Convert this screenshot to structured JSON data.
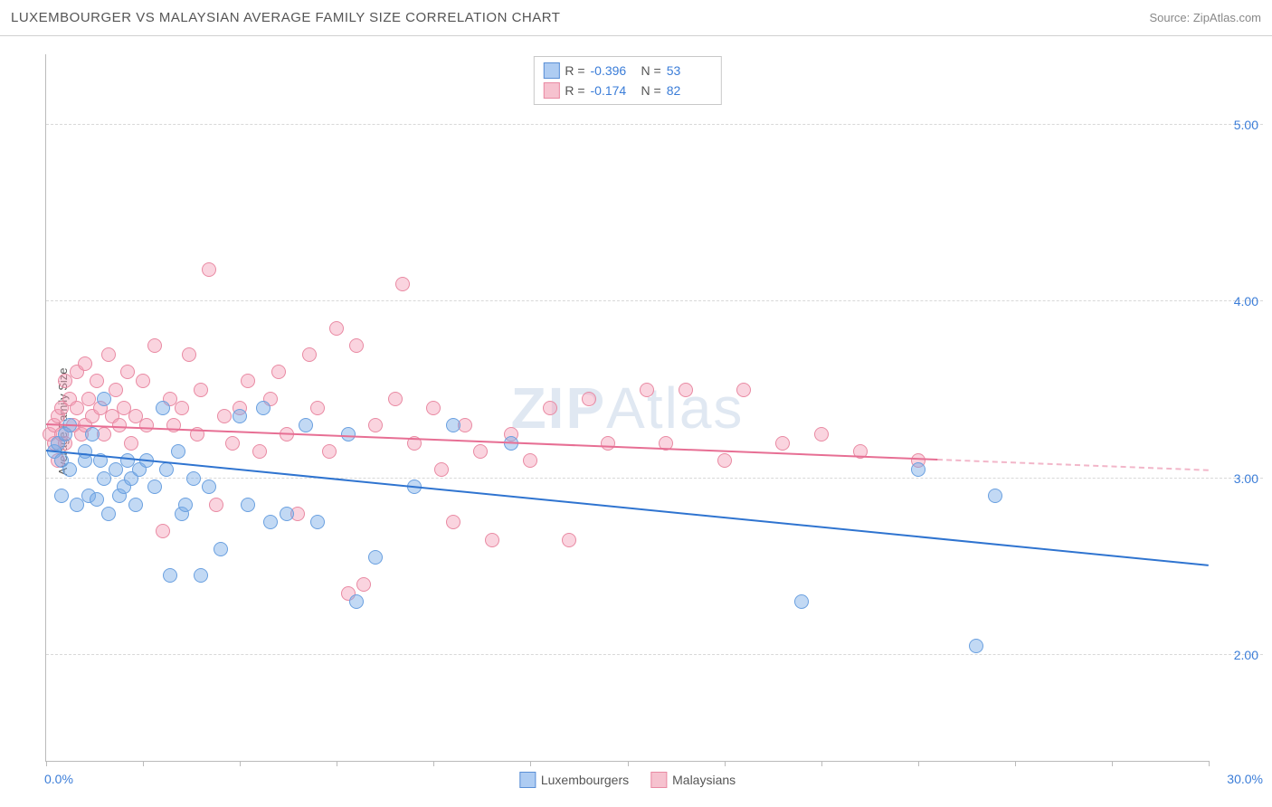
{
  "header": {
    "title": "LUXEMBOURGER VS MALAYSIAN AVERAGE FAMILY SIZE CORRELATION CHART",
    "source": "Source: ZipAtlas.com"
  },
  "watermark": {
    "part1": "ZIP",
    "part2": "Atlas"
  },
  "chart": {
    "type": "scatter",
    "ylabel": "Average Family Size",
    "xlim": [
      0,
      30
    ],
    "ylim": [
      1.4,
      5.4
    ],
    "yticks": [
      2.0,
      3.0,
      4.0,
      5.0
    ],
    "ytick_labels": [
      "2.00",
      "3.00",
      "4.00",
      "5.00"
    ],
    "xticks": [
      0,
      2.5,
      5,
      7.5,
      10,
      12.5,
      15,
      17.5,
      20,
      22.5,
      25,
      27.5,
      30
    ],
    "xlabel_min": "0.0%",
    "xlabel_max": "30.0%",
    "background_color": "#ffffff",
    "grid_color": "#d8d8d8",
    "axis_color": "#bbbbbb",
    "tick_label_color": "#3b7dd8",
    "marker_radius": 8,
    "marker_opacity": 0.55,
    "stats_box": {
      "rows": [
        {
          "swatch_fill": "#aeccf2",
          "swatch_border": "#5a8fd6",
          "r_label": "R =",
          "r_value": "-0.396",
          "n_label": "N =",
          "n_value": "53"
        },
        {
          "swatch_fill": "#f6c2cf",
          "swatch_border": "#e98aa3",
          "r_label": "R =",
          "r_value": "-0.174",
          "n_label": "N =",
          "n_value": "82"
        }
      ]
    },
    "legend": {
      "items": [
        {
          "swatch_fill": "#aeccf2",
          "swatch_border": "#5a8fd6",
          "label": "Luxembourgers"
        },
        {
          "swatch_fill": "#f6c2cf",
          "swatch_border": "#e98aa3",
          "label": "Malaysians"
        }
      ]
    },
    "series": [
      {
        "name": "Luxembourgers",
        "color_fill": "rgba(120,170,230,0.45)",
        "color_border": "#6aa0e0",
        "trend_color": "#2f74d0",
        "trend": {
          "x1": 0,
          "y1": 3.15,
          "x2": 30,
          "y2": 2.5
        },
        "points": [
          [
            0.2,
            3.15
          ],
          [
            0.3,
            3.2
          ],
          [
            0.4,
            3.1
          ],
          [
            0.4,
            2.9
          ],
          [
            0.5,
            3.25
          ],
          [
            0.6,
            3.05
          ],
          [
            0.6,
            3.3
          ],
          [
            0.8,
            2.85
          ],
          [
            1.0,
            3.1
          ],
          [
            1.0,
            3.15
          ],
          [
            1.1,
            2.9
          ],
          [
            1.2,
            3.25
          ],
          [
            1.3,
            2.88
          ],
          [
            1.4,
            3.1
          ],
          [
            1.5,
            3.0
          ],
          [
            1.5,
            3.45
          ],
          [
            1.6,
            2.8
          ],
          [
            1.8,
            3.05
          ],
          [
            1.9,
            2.9
          ],
          [
            2.0,
            2.95
          ],
          [
            2.1,
            3.1
          ],
          [
            2.2,
            3.0
          ],
          [
            2.3,
            2.85
          ],
          [
            2.4,
            3.05
          ],
          [
            2.6,
            3.1
          ],
          [
            2.8,
            2.95
          ],
          [
            3.0,
            3.4
          ],
          [
            3.1,
            3.05
          ],
          [
            3.2,
            2.45
          ],
          [
            3.4,
            3.15
          ],
          [
            3.5,
            2.8
          ],
          [
            3.6,
            2.85
          ],
          [
            3.8,
            3.0
          ],
          [
            4.0,
            2.45
          ],
          [
            4.2,
            2.95
          ],
          [
            4.5,
            2.6
          ],
          [
            5.0,
            3.35
          ],
          [
            5.2,
            2.85
          ],
          [
            5.6,
            3.4
          ],
          [
            5.8,
            2.75
          ],
          [
            6.2,
            2.8
          ],
          [
            6.7,
            3.3
          ],
          [
            7.0,
            2.75
          ],
          [
            7.8,
            3.25
          ],
          [
            8.0,
            2.3
          ],
          [
            8.5,
            2.55
          ],
          [
            9.5,
            2.95
          ],
          [
            10.5,
            3.3
          ],
          [
            12.0,
            3.2
          ],
          [
            19.5,
            2.3
          ],
          [
            22.5,
            3.05
          ],
          [
            24.5,
            2.9
          ],
          [
            24.0,
            2.05
          ]
        ]
      },
      {
        "name": "Malaysians",
        "color_fill": "rgba(245,160,185,0.45)",
        "color_border": "#e98aa3",
        "trend_color": "#e76f94",
        "trend": {
          "x1": 0,
          "y1": 3.3,
          "x2": 23,
          "y2": 3.1
        },
        "trend_dash": {
          "x1": 23,
          "y1": 3.1,
          "x2": 30,
          "y2": 3.04
        },
        "points": [
          [
            0.1,
            3.25
          ],
          [
            0.2,
            3.3
          ],
          [
            0.2,
            3.2
          ],
          [
            0.3,
            3.35
          ],
          [
            0.3,
            3.1
          ],
          [
            0.4,
            3.4
          ],
          [
            0.4,
            3.25
          ],
          [
            0.5,
            3.55
          ],
          [
            0.5,
            3.2
          ],
          [
            0.6,
            3.45
          ],
          [
            0.7,
            3.3
          ],
          [
            0.8,
            3.6
          ],
          [
            0.8,
            3.4
          ],
          [
            0.9,
            3.25
          ],
          [
            1.0,
            3.65
          ],
          [
            1.0,
            3.3
          ],
          [
            1.1,
            3.45
          ],
          [
            1.2,
            3.35
          ],
          [
            1.3,
            3.55
          ],
          [
            1.4,
            3.4
          ],
          [
            1.5,
            3.25
          ],
          [
            1.6,
            3.7
          ],
          [
            1.7,
            3.35
          ],
          [
            1.8,
            3.5
          ],
          [
            1.9,
            3.3
          ],
          [
            2.0,
            3.4
          ],
          [
            2.1,
            3.6
          ],
          [
            2.2,
            3.2
          ],
          [
            2.3,
            3.35
          ],
          [
            2.5,
            3.55
          ],
          [
            2.6,
            3.3
          ],
          [
            2.8,
            3.75
          ],
          [
            3.0,
            2.7
          ],
          [
            3.2,
            3.45
          ],
          [
            3.3,
            3.3
          ],
          [
            3.5,
            3.4
          ],
          [
            3.7,
            3.7
          ],
          [
            3.9,
            3.25
          ],
          [
            4.0,
            3.5
          ],
          [
            4.2,
            4.18
          ],
          [
            4.4,
            2.85
          ],
          [
            4.6,
            3.35
          ],
          [
            4.8,
            3.2
          ],
          [
            5.0,
            3.4
          ],
          [
            5.2,
            3.55
          ],
          [
            5.5,
            3.15
          ],
          [
            5.8,
            3.45
          ],
          [
            6.0,
            3.6
          ],
          [
            6.2,
            3.25
          ],
          [
            6.5,
            2.8
          ],
          [
            6.8,
            3.7
          ],
          [
            7.0,
            3.4
          ],
          [
            7.3,
            3.15
          ],
          [
            7.5,
            3.85
          ],
          [
            7.8,
            2.35
          ],
          [
            8.0,
            3.75
          ],
          [
            8.2,
            2.4
          ],
          [
            8.5,
            3.3
          ],
          [
            9.0,
            3.45
          ],
          [
            9.2,
            4.1
          ],
          [
            9.5,
            3.2
          ],
          [
            10.0,
            3.4
          ],
          [
            10.2,
            3.05
          ],
          [
            10.5,
            2.75
          ],
          [
            10.8,
            3.3
          ],
          [
            11.2,
            3.15
          ],
          [
            11.5,
            2.65
          ],
          [
            12.0,
            3.25
          ],
          [
            12.5,
            3.1
          ],
          [
            13.0,
            3.4
          ],
          [
            13.5,
            2.65
          ],
          [
            14.0,
            3.45
          ],
          [
            14.5,
            3.2
          ],
          [
            15.5,
            3.5
          ],
          [
            16.0,
            3.2
          ],
          [
            16.5,
            3.5
          ],
          [
            17.5,
            3.1
          ],
          [
            18.0,
            3.5
          ],
          [
            19.0,
            3.2
          ],
          [
            20.0,
            3.25
          ],
          [
            21.0,
            3.15
          ],
          [
            22.5,
            3.1
          ]
        ]
      }
    ]
  }
}
